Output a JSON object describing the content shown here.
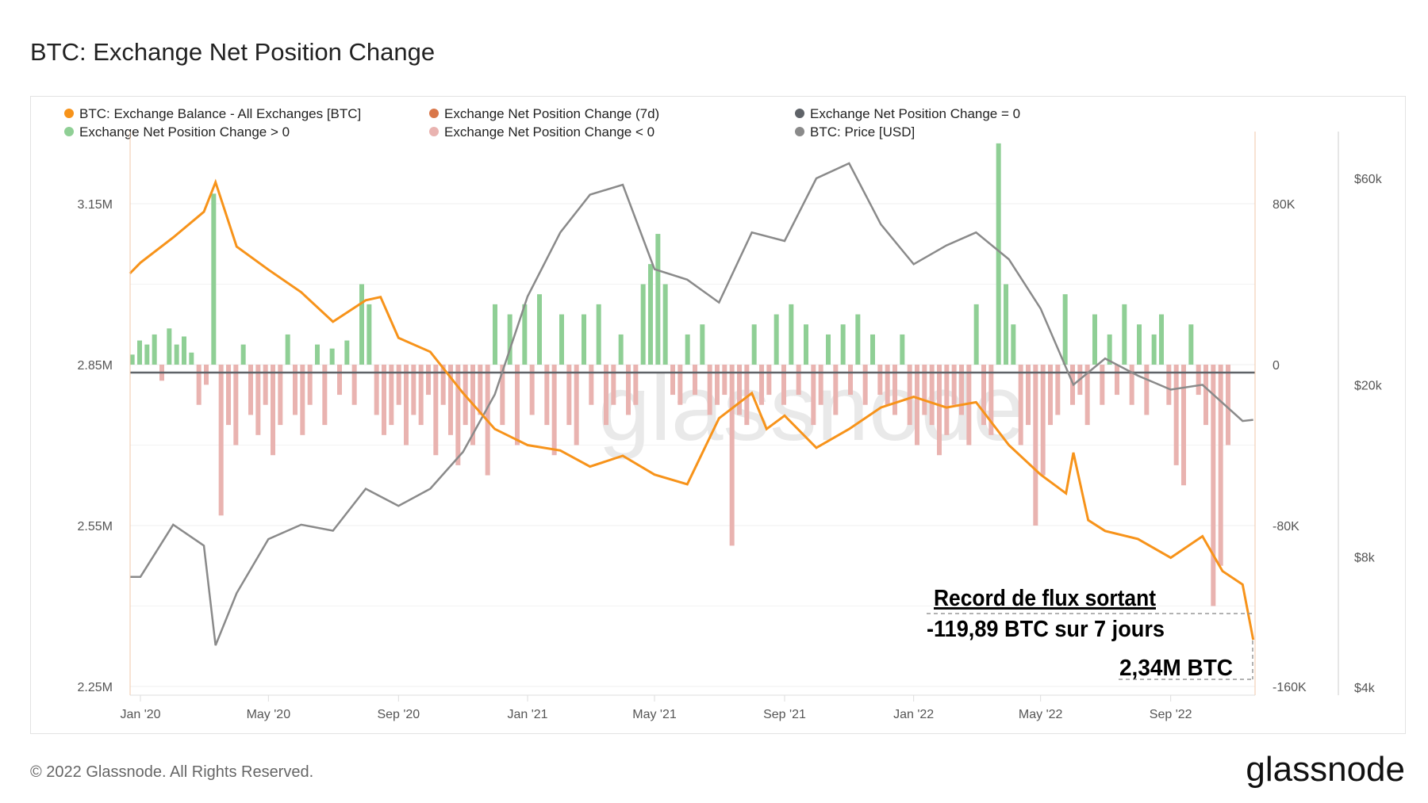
{
  "title": "BTC: Exchange Net Position Change",
  "footer": {
    "copyright": "© 2022 Glassnode. All Rights Reserved.",
    "logo_text": "glassnode"
  },
  "watermark": "glassnode",
  "legend": [
    {
      "label": "BTC: Exchange Balance - All Exchanges [BTC]",
      "color": "#f7931a",
      "muted": false
    },
    {
      "label": "Exchange Net Position Change (7d)",
      "color": "#d9774a",
      "muted": true
    },
    {
      "label": "Exchange Net Position Change = 0",
      "color": "#5f6368",
      "muted": false
    },
    {
      "label": "Exchange Net Position Change > 0",
      "color": "#8fcf95",
      "muted": false
    },
    {
      "label": "Exchange Net Position Change < 0",
      "color": "#e9b3b0",
      "muted": false
    },
    {
      "label": "BTC: Price [USD]",
      "color": "#8a8a8a",
      "muted": false
    }
  ],
  "annotations": {
    "headline": "Record de flux sortant",
    "flow": "-119,89 BTC sur 7 jours",
    "balance": "2,34M BTC"
  },
  "chart_data": {
    "type": "line+bar",
    "x_range": [
      "2019-12-22",
      "2022-11-18"
    ],
    "x_ticks": [
      "Jan '20",
      "May '20",
      "Sep '20",
      "Jan '21",
      "May '21",
      "Sep '21",
      "Jan '22",
      "May '22",
      "Sep '22"
    ],
    "x_tick_dates": [
      "2020-01-01",
      "2020-05-01",
      "2020-09-01",
      "2021-01-01",
      "2021-05-01",
      "2021-09-01",
      "2022-01-01",
      "2022-05-01",
      "2022-09-01"
    ],
    "left_axis": {
      "ticks": [
        "3.15M",
        "2.85M",
        "2.55M",
        "2.25M"
      ],
      "tick_values": [
        3.15,
        2.85,
        2.55,
        2.25
      ],
      "range": [
        2.25,
        3.3
      ],
      "unit": "M BTC"
    },
    "mid_axis": {
      "ticks": [
        "80K",
        "0",
        "-80K",
        "-160K"
      ],
      "tick_values": [
        80,
        0,
        -80,
        -160
      ],
      "range": [
        -160,
        105
      ],
      "unit": "K BTC"
    },
    "right_axis": {
      "ticks": [
        "$60k",
        "$20k",
        "$8k",
        "$4k"
      ],
      "tick_values": [
        60000,
        20000,
        8000,
        4000
      ],
      "scale": "log",
      "range": [
        4000,
        70000
      ]
    },
    "grid": true,
    "legend_position": "top",
    "balance_series": {
      "name": "BTC: Exchange Balance - All Exchanges [BTC]",
      "color": "#f7931a",
      "points": [
        [
          "2019-12-22",
          3.02
        ],
        [
          "2020-01-01",
          3.04
        ],
        [
          "2020-02-01",
          3.087
        ],
        [
          "2020-03-01",
          3.135
        ],
        [
          "2020-03-12",
          3.19
        ],
        [
          "2020-04-01",
          3.07
        ],
        [
          "2020-05-01",
          3.027
        ],
        [
          "2020-06-01",
          2.985
        ],
        [
          "2020-07-01",
          2.93
        ],
        [
          "2020-08-01",
          2.97
        ],
        [
          "2020-08-15",
          2.976
        ],
        [
          "2020-09-01",
          2.9
        ],
        [
          "2020-10-01",
          2.874
        ],
        [
          "2020-11-01",
          2.797
        ],
        [
          "2020-12-01",
          2.73
        ],
        [
          "2021-01-01",
          2.7
        ],
        [
          "2021-02-01",
          2.69
        ],
        [
          "2021-03-01",
          2.66
        ],
        [
          "2021-04-01",
          2.68
        ],
        [
          "2021-05-01",
          2.645
        ],
        [
          "2021-06-01",
          2.627
        ],
        [
          "2021-07-01",
          2.75
        ],
        [
          "2021-08-01",
          2.797
        ],
        [
          "2021-08-15",
          2.73
        ],
        [
          "2021-09-01",
          2.755
        ],
        [
          "2021-10-01",
          2.695
        ],
        [
          "2021-11-01",
          2.73
        ],
        [
          "2021-12-01",
          2.77
        ],
        [
          "2022-01-01",
          2.79
        ],
        [
          "2022-02-01",
          2.77
        ],
        [
          "2022-03-01",
          2.78
        ],
        [
          "2022-04-01",
          2.7
        ],
        [
          "2022-05-01",
          2.645
        ],
        [
          "2022-05-25",
          2.61
        ],
        [
          "2022-06-01",
          2.686
        ],
        [
          "2022-06-15",
          2.56
        ],
        [
          "2022-07-01",
          2.54
        ],
        [
          "2022-08-01",
          2.525
        ],
        [
          "2022-09-01",
          2.49
        ],
        [
          "2022-10-01",
          2.53
        ],
        [
          "2022-10-20",
          2.465
        ],
        [
          "2022-11-08",
          2.44
        ],
        [
          "2022-11-18",
          2.337
        ]
      ]
    },
    "price_series": {
      "name": "BTC: Price [USD]",
      "color": "#8a8a8a",
      "points": [
        [
          "2019-12-22",
          7200
        ],
        [
          "2020-01-01",
          7200
        ],
        [
          "2020-02-01",
          9500
        ],
        [
          "2020-03-01",
          8500
        ],
        [
          "2020-03-12",
          5000
        ],
        [
          "2020-04-01",
          6600
        ],
        [
          "2020-05-01",
          8800
        ],
        [
          "2020-06-01",
          9500
        ],
        [
          "2020-07-01",
          9200
        ],
        [
          "2020-08-01",
          11500
        ],
        [
          "2020-09-01",
          10500
        ],
        [
          "2020-10-01",
          11500
        ],
        [
          "2020-11-01",
          14000
        ],
        [
          "2020-12-01",
          19000
        ],
        [
          "2021-01-01",
          32000
        ],
        [
          "2021-02-01",
          45000
        ],
        [
          "2021-03-01",
          55000
        ],
        [
          "2021-04-01",
          58000
        ],
        [
          "2021-05-01",
          37000
        ],
        [
          "2021-06-01",
          35000
        ],
        [
          "2021-07-01",
          31000
        ],
        [
          "2021-08-01",
          45000
        ],
        [
          "2021-09-01",
          43000
        ],
        [
          "2021-10-01",
          60000
        ],
        [
          "2021-11-01",
          65000
        ],
        [
          "2021-12-01",
          47000
        ],
        [
          "2022-01-01",
          38000
        ],
        [
          "2022-02-01",
          42000
        ],
        [
          "2022-03-01",
          45000
        ],
        [
          "2022-04-01",
          39000
        ],
        [
          "2022-05-01",
          30000
        ],
        [
          "2022-06-01",
          20000
        ],
        [
          "2022-07-01",
          23000
        ],
        [
          "2022-08-01",
          21000
        ],
        [
          "2022-09-01",
          19500
        ],
        [
          "2022-10-01",
          20000
        ],
        [
          "2022-11-08",
          16500
        ],
        [
          "2022-11-18",
          16600
        ]
      ]
    },
    "net_position_change_weekly_k": {
      "start": "2019-12-22",
      "step_days": 7,
      "positive_color": "#8fcf95",
      "negative_color": "#e9b3b0",
      "zero_line_color": "#5f6368",
      "values": [
        5,
        12,
        10,
        15,
        -8,
        18,
        10,
        14,
        6,
        -20,
        -10,
        85,
        -75,
        -30,
        -40,
        10,
        -25,
        -35,
        -20,
        -45,
        -30,
        15,
        -25,
        -35,
        -20,
        10,
        -30,
        8,
        -15,
        12,
        -20,
        40,
        30,
        -25,
        -35,
        -30,
        -20,
        -40,
        -25,
        -30,
        -15,
        -45,
        -20,
        -35,
        -50,
        -30,
        -40,
        -25,
        -55,
        30,
        -30,
        25,
        -40,
        30,
        -25,
        35,
        -30,
        -45,
        25,
        -30,
        -40,
        25,
        -20,
        30,
        -30,
        -20,
        15,
        -25,
        -20,
        40,
        50,
        65,
        40,
        -15,
        -20,
        15,
        -15,
        20,
        -25,
        -20,
        -15,
        -90,
        -25,
        -30,
        20,
        -20,
        -15,
        25,
        -20,
        30,
        -15,
        20,
        -30,
        -20,
        15,
        -25,
        20,
        -15,
        25,
        -20,
        15,
        -15,
        -20,
        -25,
        15,
        -30,
        -40,
        -25,
        -30,
        -45,
        -35,
        -20,
        -25,
        -40,
        30,
        -30,
        -35,
        110,
        40,
        20,
        -40,
        -30,
        -80,
        -55,
        -30,
        -25,
        35,
        -20,
        -15,
        -30,
        25,
        -20,
        15,
        -15,
        30,
        -20,
        20,
        -25,
        15,
        25,
        -20,
        -50,
        -60,
        20,
        -15,
        -30,
        -120,
        -100,
        -40
      ]
    }
  }
}
